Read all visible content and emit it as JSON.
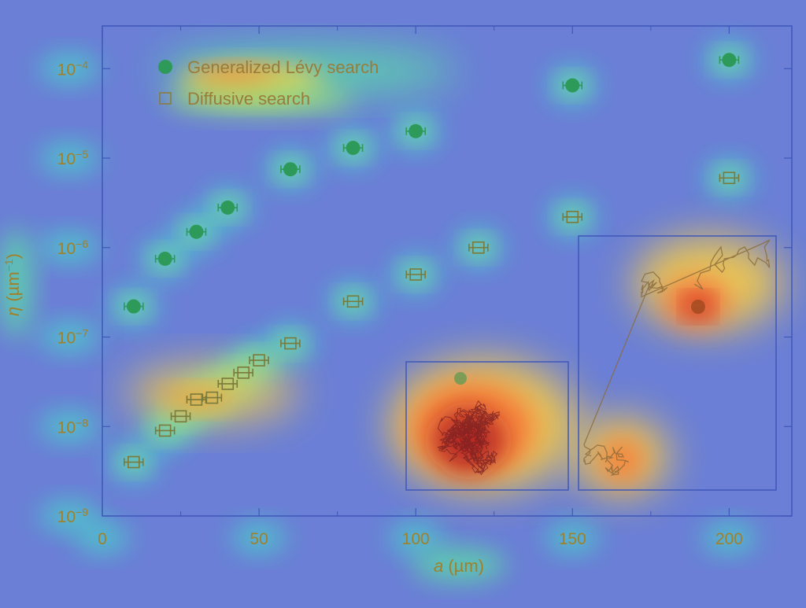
{
  "chart_data": {
    "type": "scatter",
    "xlabel_italic": "a",
    "xlabel_rest": " (µm)",
    "ylabel_italic": "η",
    "ylabel_rest": " (µm",
    "ylabel_exp": "−1",
    "ylabel_close": ")",
    "xlim": [
      0,
      220
    ],
    "ylim": [
      1e-09,
      0.0003
    ],
    "yscale": "log",
    "x_ticks": [
      0,
      50,
      100,
      150,
      200
    ],
    "y_ticks": [
      {
        "base": "10",
        "exp": "−4",
        "value": 0.0001
      },
      {
        "base": "10",
        "exp": "−5",
        "value": 1e-05
      },
      {
        "base": "10",
        "exp": "−6",
        "value": 1e-06
      },
      {
        "base": "10",
        "exp": "−7",
        "value": 1e-07
      },
      {
        "base": "10",
        "exp": "−8",
        "value": 1e-08
      },
      {
        "base": "10",
        "exp": "−9",
        "value": 1e-09
      }
    ],
    "legend_position": "top-left",
    "heatmap_overlay": true,
    "series": [
      {
        "name": "Generalized Lévy search",
        "marker": "filled-circle",
        "color": "#2e9a5a",
        "points": [
          {
            "x": 10,
            "y": 2.2e-07
          },
          {
            "x": 20,
            "y": 7.5e-07
          },
          {
            "x": 30,
            "y": 1.5e-06
          },
          {
            "x": 40,
            "y": 2.8e-06
          },
          {
            "x": 60,
            "y": 7.5e-06
          },
          {
            "x": 80,
            "y": 1.3e-05
          },
          {
            "x": 100,
            "y": 2e-05
          },
          {
            "x": 150,
            "y": 6.5e-05
          },
          {
            "x": 200,
            "y": 0.000125
          }
        ]
      },
      {
        "name": "Diffusive search",
        "marker": "open-square",
        "color": "#7a7a3a",
        "points": [
          {
            "x": 10,
            "y": 4e-09
          },
          {
            "x": 20,
            "y": 9e-09
          },
          {
            "x": 25,
            "y": 1.3e-08
          },
          {
            "x": 30,
            "y": 2e-08
          },
          {
            "x": 35,
            "y": 2.1e-08
          },
          {
            "x": 40,
            "y": 3e-08
          },
          {
            "x": 45,
            "y": 4e-08
          },
          {
            "x": 50,
            "y": 5.5e-08
          },
          {
            "x": 60,
            "y": 8.5e-08
          },
          {
            "x": 80,
            "y": 2.5e-07
          },
          {
            "x": 100,
            "y": 5e-07
          },
          {
            "x": 120,
            "y": 1e-06
          },
          {
            "x": 150,
            "y": 2.2e-06
          },
          {
            "x": 200,
            "y": 6e-06
          }
        ]
      }
    ]
  }
}
